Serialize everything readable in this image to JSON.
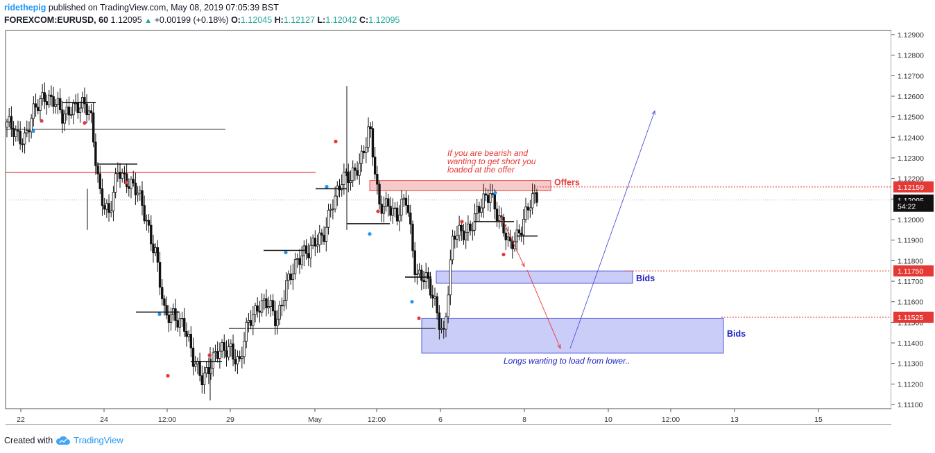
{
  "header": {
    "user": "ridethepig",
    "published": "published on TradingView.com, May 08, 2019 07:05:39 BST",
    "symbol": "FOREXCOM:EURUSD, 60",
    "last": "1.12095",
    "change_arrow": "▲",
    "change": "+0.00199 (+0.18%)",
    "o_label": "O:",
    "o_value": "1.12045",
    "h_label": "H:",
    "h_value": "1.12127",
    "l_label": "L:",
    "l_value": "1.12042",
    "c_label": "C:",
    "c_value": "1.12095"
  },
  "footer": {
    "created_with": "Created with",
    "brand": "TradingView",
    "logo_icon": "tradingview-cloud-icon"
  },
  "colors": {
    "offer_line": "#e53935",
    "offer_zone": "#f5c5c5",
    "bid_zone": "#c5c8f8",
    "bid_border": "#3f46d6",
    "bid_label": "#1a1fc4",
    "arrow_red": "#e53935",
    "arrow_blue": "#4a4fd8",
    "up": "#26a69a",
    "accent": "#2196f3"
  },
  "chart_data": {
    "type": "candlestick",
    "symbol": "FOREXCOM:EURUSD",
    "interval": "60",
    "ylim": [
      1.1108,
      1.1292
    ],
    "y_ticks": [
      "1.12900",
      "1.12800",
      "1.12700",
      "1.12600",
      "1.12500",
      "1.12400",
      "1.12300",
      "1.12200",
      "1.12100",
      "1.12000",
      "1.11900",
      "1.11800",
      "1.11700",
      "1.11600",
      "1.11500",
      "1.11400",
      "1.11300",
      "1.11200",
      "1.11100"
    ],
    "x_ticks": [
      "22",
      "24",
      "12:00",
      "29",
      "May",
      "12:00",
      "6",
      "8",
      "10",
      "12:00",
      "13",
      "15"
    ],
    "price_tags": [
      {
        "label": "1.12159",
        "value": 1.12159,
        "kind": "level"
      },
      {
        "label": "1.12095",
        "value": 1.12095,
        "kind": "last"
      },
      {
        "label": "54:22",
        "value": 1.12065,
        "kind": "countdown"
      },
      {
        "label": "1.11750",
        "value": 1.1175,
        "kind": "level"
      },
      {
        "label": "1.11525",
        "value": 1.11525,
        "kind": "level"
      }
    ],
    "zones": [
      {
        "name": "Offers",
        "label": "Offers",
        "top": 1.1219,
        "bottom": 1.1214,
        "kind": "offer"
      },
      {
        "name": "Bids",
        "label": "Bids",
        "top": 1.1175,
        "bottom": 1.1169,
        "kind": "bid"
      },
      {
        "name": "Bids",
        "label": "Bids",
        "top": 1.1152,
        "bottom": 1.1135,
        "kind": "bid"
      }
    ],
    "annotations": [
      {
        "text": "If you are bearish and",
        "color": "red"
      },
      {
        "text": "wanting to get short you",
        "color": "red"
      },
      {
        "text": "loaded at the offer",
        "color": "red"
      },
      {
        "text": "Longs wanting to load from lower..",
        "color": "blue"
      }
    ],
    "path": [
      1.1245,
      1.1243,
      1.124,
      1.1252,
      1.1262,
      1.1258,
      1.1248,
      1.1257,
      1.1255,
      1.125,
      1.1215,
      1.12,
      1.1225,
      1.122,
      1.1212,
      1.12,
      1.1185,
      1.115,
      1.1155,
      1.115,
      1.113,
      1.1125,
      1.113,
      1.1135,
      1.114,
      1.1128,
      1.115,
      1.116,
      1.1158,
      1.115,
      1.117,
      1.1175,
      1.1185,
      1.119,
      1.1188,
      1.121,
      1.122,
      1.1218,
      1.123,
      1.1245,
      1.1205,
      1.121,
      1.12,
      1.121,
      1.1175,
      1.117,
      1.116,
      1.1145,
      1.119,
      1.1195,
      1.1198,
      1.1205,
      1.1215,
      1.12,
      1.1185,
      1.1195,
      1.1205,
      1.121
    ],
    "path_range": [
      "22",
      "8"
    ]
  }
}
